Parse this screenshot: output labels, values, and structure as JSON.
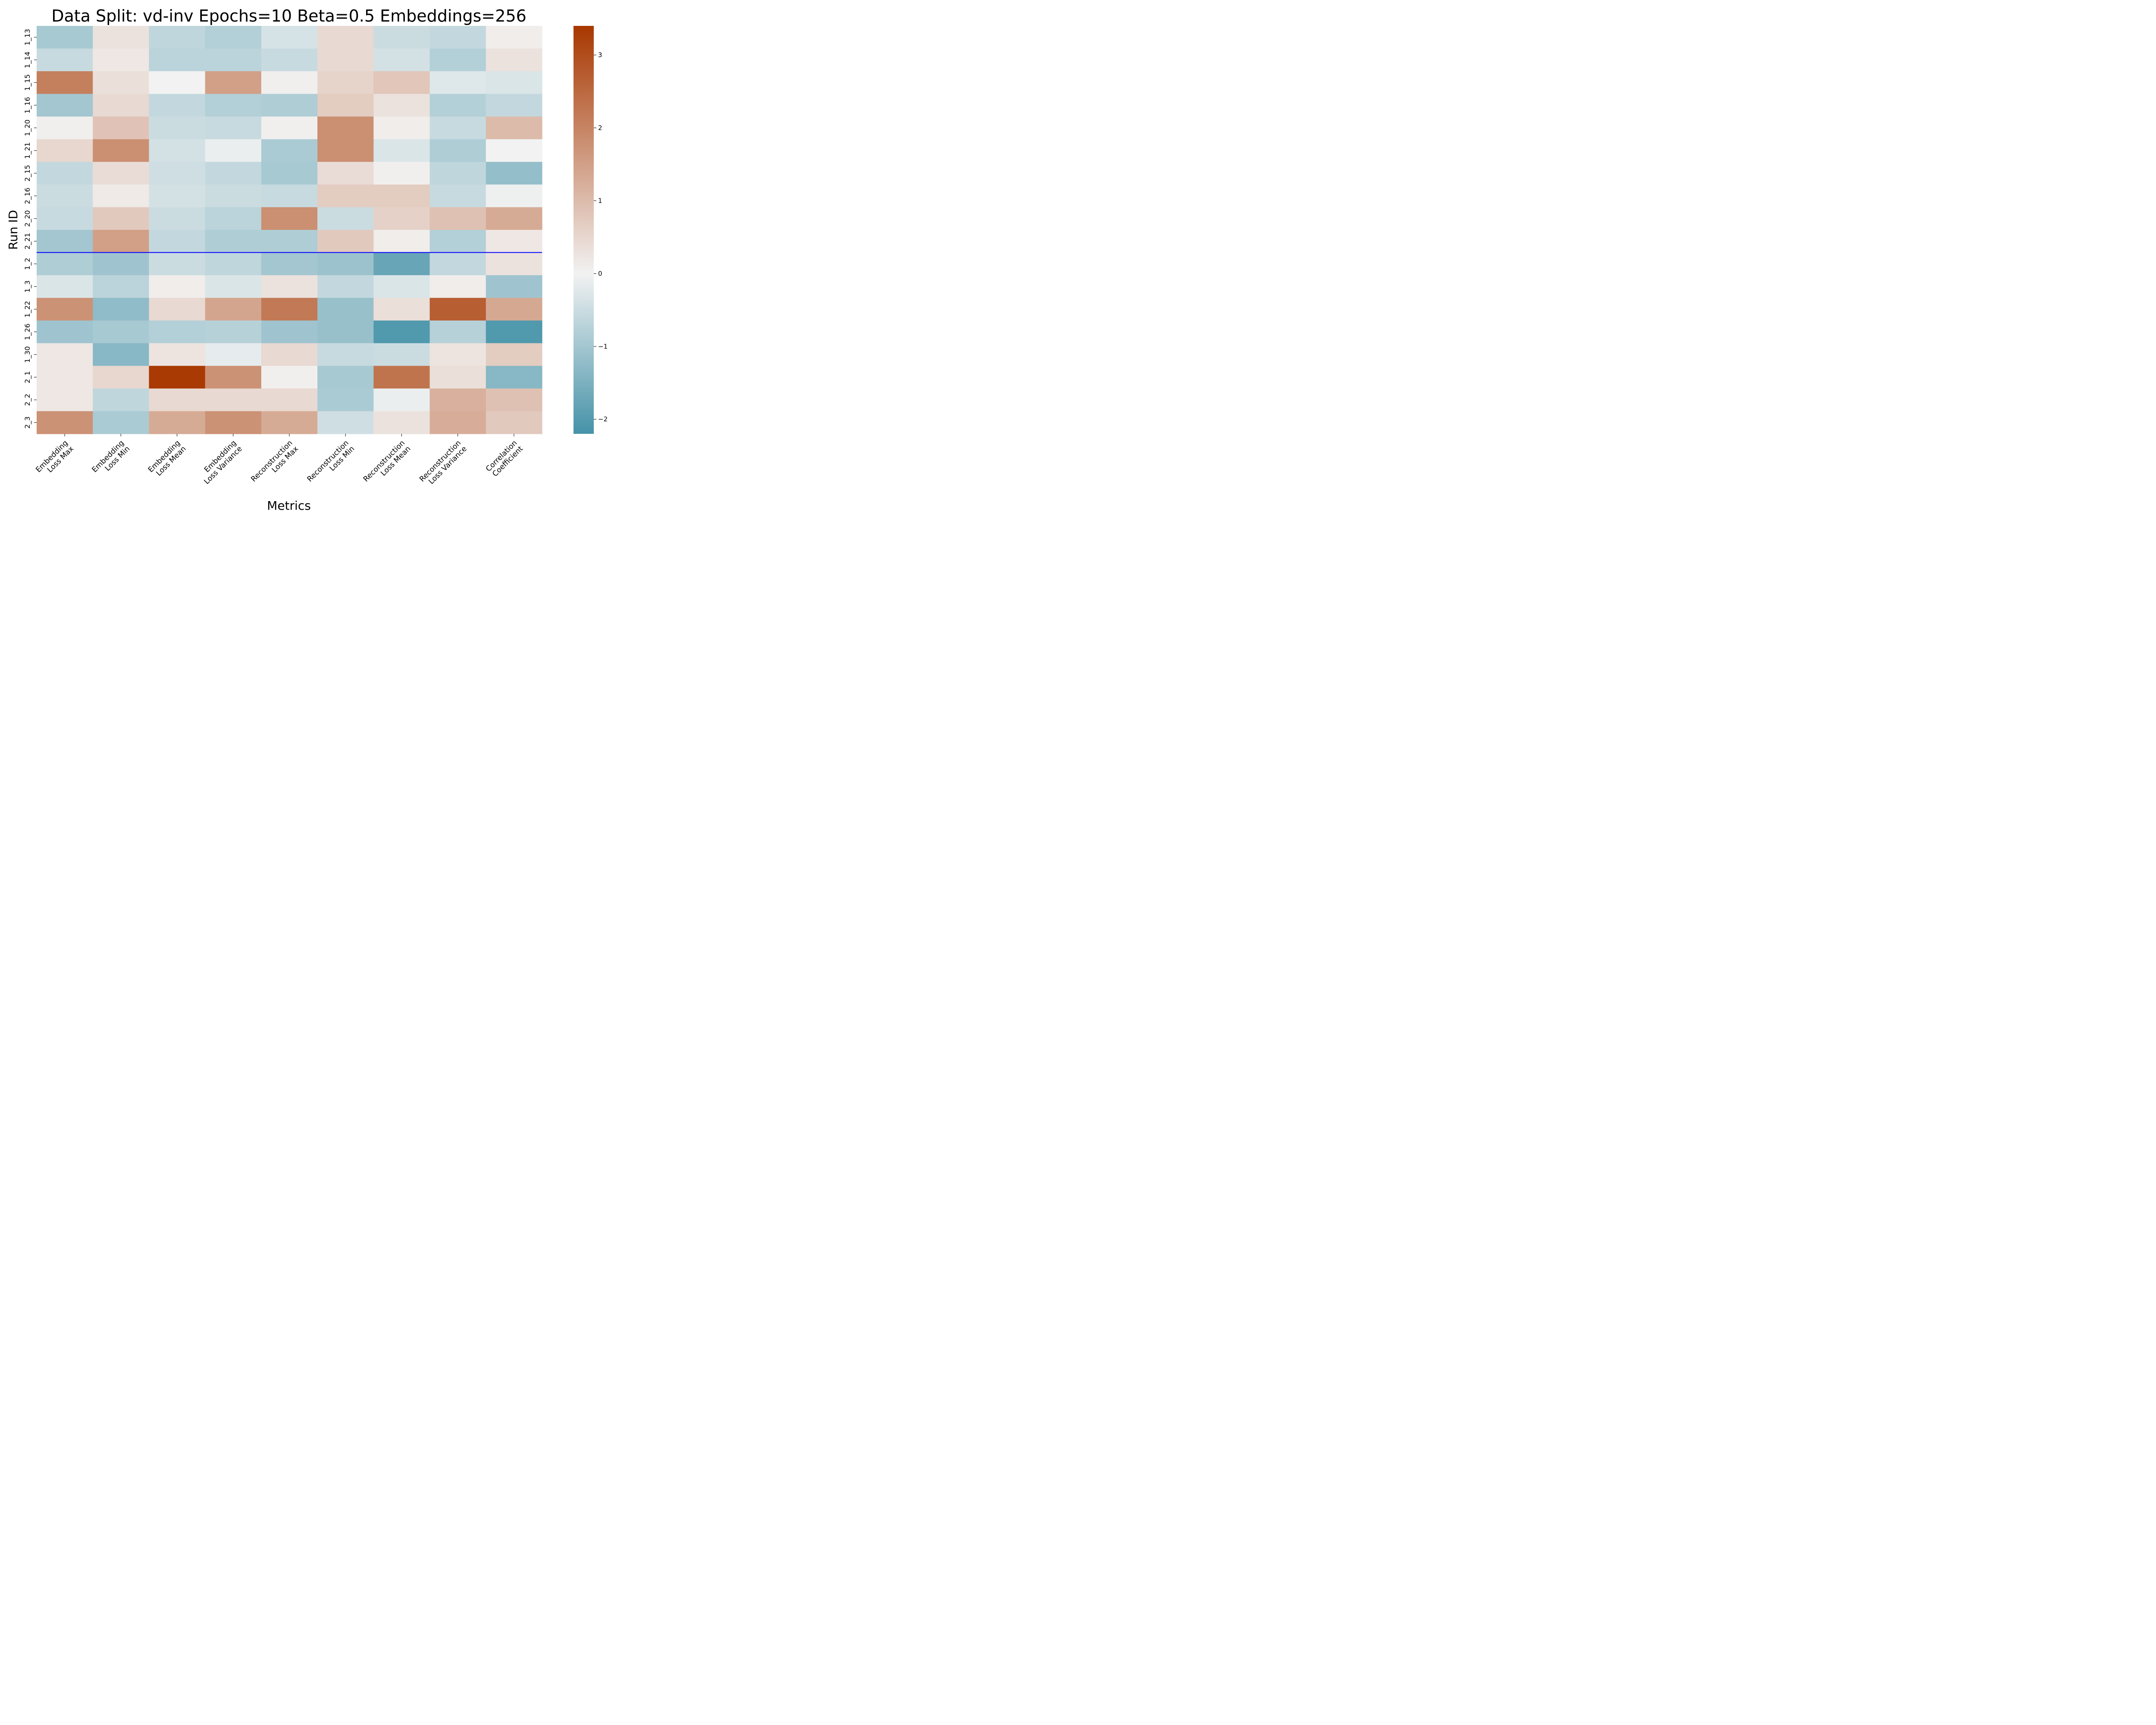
{
  "chart_data": {
    "type": "heatmap",
    "title": "Data Split: vd-inv Epochs=10 Beta=0.5 Embeddings=256",
    "xlabel": "Metrics",
    "ylabel": "Run ID",
    "columns": [
      [
        "Embedding",
        "Loss Max"
      ],
      [
        "Embedding",
        "Loss Min"
      ],
      [
        "Embedding",
        "Loss Mean"
      ],
      [
        "Embedding",
        "Loss Variance"
      ],
      [
        "Reconstruction",
        "Loss Max"
      ],
      [
        "Reconstruction",
        "Loss Min"
      ],
      [
        "Reconstruction",
        "Loss Mean"
      ],
      [
        "Reconstruction",
        "Loss Variance"
      ],
      [
        "Correlation",
        "Coefficient"
      ]
    ],
    "rows": [
      "1_13",
      "1_14",
      "1_15",
      "1_16",
      "1_20",
      "1_21",
      "2_15",
      "2_16",
      "2_20",
      "2_21",
      "1_2",
      "1_3",
      "1_22",
      "1_26",
      "1_30",
      "2_1",
      "2_2",
      "2_3"
    ],
    "values": [
      [
        -0.95,
        0.3,
        -0.65,
        -0.8,
        -0.35,
        0.45,
        -0.5,
        -0.6,
        0.1
      ],
      [
        -0.55,
        0.2,
        -0.7,
        -0.7,
        -0.55,
        0.45,
        -0.4,
        -0.8,
        0.3
      ],
      [
        2.1,
        0.35,
        0.0,
        1.5,
        0.05,
        0.55,
        0.8,
        -0.25,
        -0.3
      ],
      [
        -1.0,
        0.45,
        -0.6,
        -0.8,
        -0.85,
        0.7,
        0.3,
        -0.8,
        -0.6
      ],
      [
        0.05,
        0.85,
        -0.5,
        -0.55,
        0.05,
        1.8,
        0.1,
        -0.55,
        1.0
      ],
      [
        0.5,
        1.8,
        -0.4,
        -0.1,
        -0.9,
        1.8,
        -0.3,
        -0.85,
        0.0
      ],
      [
        -0.6,
        0.4,
        -0.45,
        -0.6,
        -0.95,
        0.4,
        0.05,
        -0.65,
        -1.2
      ],
      [
        -0.5,
        0.15,
        -0.4,
        -0.5,
        -0.55,
        0.7,
        0.7,
        -0.55,
        -0.05
      ],
      [
        -0.55,
        0.75,
        -0.5,
        -0.7,
        1.8,
        -0.5,
        0.6,
        0.9,
        1.3
      ],
      [
        -1.0,
        1.5,
        -0.6,
        -0.85,
        -0.85,
        0.75,
        0.1,
        -0.8,
        0.2
      ],
      [
        -0.85,
        -1.05,
        -0.5,
        -0.65,
        -1.0,
        -1.1,
        -1.75,
        -0.6,
        0.3
      ],
      [
        -0.3,
        -0.7,
        0.1,
        -0.3,
        0.3,
        -0.6,
        -0.3,
        0.1,
        -1.05
      ],
      [
        1.75,
        -1.25,
        0.45,
        1.4,
        2.2,
        -1.15,
        0.35,
        2.7,
        1.35
      ],
      [
        -1.05,
        -0.95,
        -0.8,
        -0.75,
        -1.05,
        -1.15,
        -2.05,
        -0.75,
        -2.05
      ],
      [
        0.2,
        -1.35,
        0.25,
        -0.15,
        0.45,
        -0.55,
        -0.5,
        0.25,
        0.7
      ],
      [
        0.2,
        0.5,
        3.35,
        1.75,
        0.05,
        -0.95,
        2.3,
        0.35,
        -1.35
      ],
      [
        0.2,
        -0.65,
        0.45,
        0.45,
        0.45,
        -0.9,
        -0.1,
        1.2,
        0.9
      ],
      [
        1.75,
        -0.9,
        1.3,
        1.75,
        1.3,
        -0.45,
        0.3,
        1.25,
        0.75
      ]
    ],
    "separator_after_row": "2_21",
    "separator_color": "#0000ff",
    "vmin": -2.2,
    "vmax": 3.4,
    "colorbar": {
      "ticks": [
        3,
        2,
        1,
        0,
        -1,
        -2
      ],
      "tick_labels": [
        "3",
        "2",
        "1",
        "0",
        "−1",
        "−2"
      ],
      "low_color": "#4592a8",
      "mid_color": "#f2f2f2",
      "high_color": "#a83700",
      "colormap": "diverging"
    },
    "grid": false,
    "legend": "colorbar-right"
  }
}
